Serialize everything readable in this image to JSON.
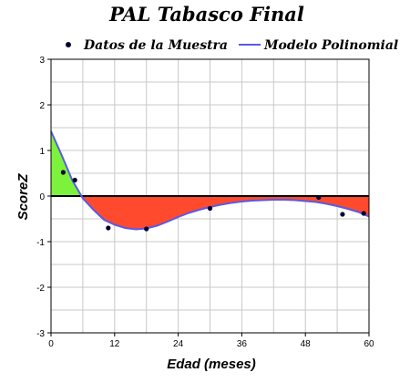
{
  "chart_data": {
    "type": "scatter",
    "title": "PAL Tabasco Final",
    "xlabel": "Edad (meses)",
    "ylabel": "ScoreZ",
    "xlim": [
      0,
      60
    ],
    "ylim": [
      -3,
      3
    ],
    "x_ticks": [
      "0",
      "12",
      "24",
      "36",
      "48",
      "60"
    ],
    "y_ticks": [
      "3",
      "2",
      "1",
      "0",
      "-1",
      "-2",
      "-3"
    ],
    "grid": true,
    "legend_position": "top",
    "series": [
      {
        "name": "Datos de la Muestra",
        "kind": "points",
        "color": "#000033",
        "points": [
          {
            "x": 2.3,
            "y": 0.52
          },
          {
            "x": 4.5,
            "y": 0.35
          },
          {
            "x": 10.8,
            "y": -0.7
          },
          {
            "x": 18.0,
            "y": -0.72
          },
          {
            "x": 30.0,
            "y": -0.27
          },
          {
            "x": 50.5,
            "y": -0.03
          },
          {
            "x": 55.0,
            "y": -0.4
          },
          {
            "x": 59.0,
            "y": -0.38
          }
        ]
      },
      {
        "name": "Modelo Polinomial",
        "kind": "line",
        "color": "#5a5ae6",
        "points": [
          {
            "x": 0,
            "y": 1.42
          },
          {
            "x": 2,
            "y": 0.9
          },
          {
            "x": 4,
            "y": 0.35
          },
          {
            "x": 6,
            "y": -0.05
          },
          {
            "x": 8,
            "y": -0.3
          },
          {
            "x": 10,
            "y": -0.52
          },
          {
            "x": 12,
            "y": -0.63
          },
          {
            "x": 14,
            "y": -0.7
          },
          {
            "x": 16,
            "y": -0.73
          },
          {
            "x": 18,
            "y": -0.71
          },
          {
            "x": 20,
            "y": -0.65
          },
          {
            "x": 22,
            "y": -0.56
          },
          {
            "x": 24,
            "y": -0.46
          },
          {
            "x": 26,
            "y": -0.37
          },
          {
            "x": 28,
            "y": -0.3
          },
          {
            "x": 30,
            "y": -0.24
          },
          {
            "x": 32,
            "y": -0.19
          },
          {
            "x": 34,
            "y": -0.15
          },
          {
            "x": 36,
            "y": -0.12
          },
          {
            "x": 38,
            "y": -0.1
          },
          {
            "x": 40,
            "y": -0.09
          },
          {
            "x": 42,
            "y": -0.08
          },
          {
            "x": 44,
            "y": -0.08
          },
          {
            "x": 46,
            "y": -0.09
          },
          {
            "x": 48,
            "y": -0.11
          },
          {
            "x": 50,
            "y": -0.13
          },
          {
            "x": 52,
            "y": -0.17
          },
          {
            "x": 54,
            "y": -0.22
          },
          {
            "x": 56,
            "y": -0.28
          },
          {
            "x": 58,
            "y": -0.35
          },
          {
            "x": 60,
            "y": -0.45
          }
        ]
      }
    ],
    "fill_colors": {
      "positive": "#7df23c",
      "negative": "#ff4a2e"
    }
  }
}
